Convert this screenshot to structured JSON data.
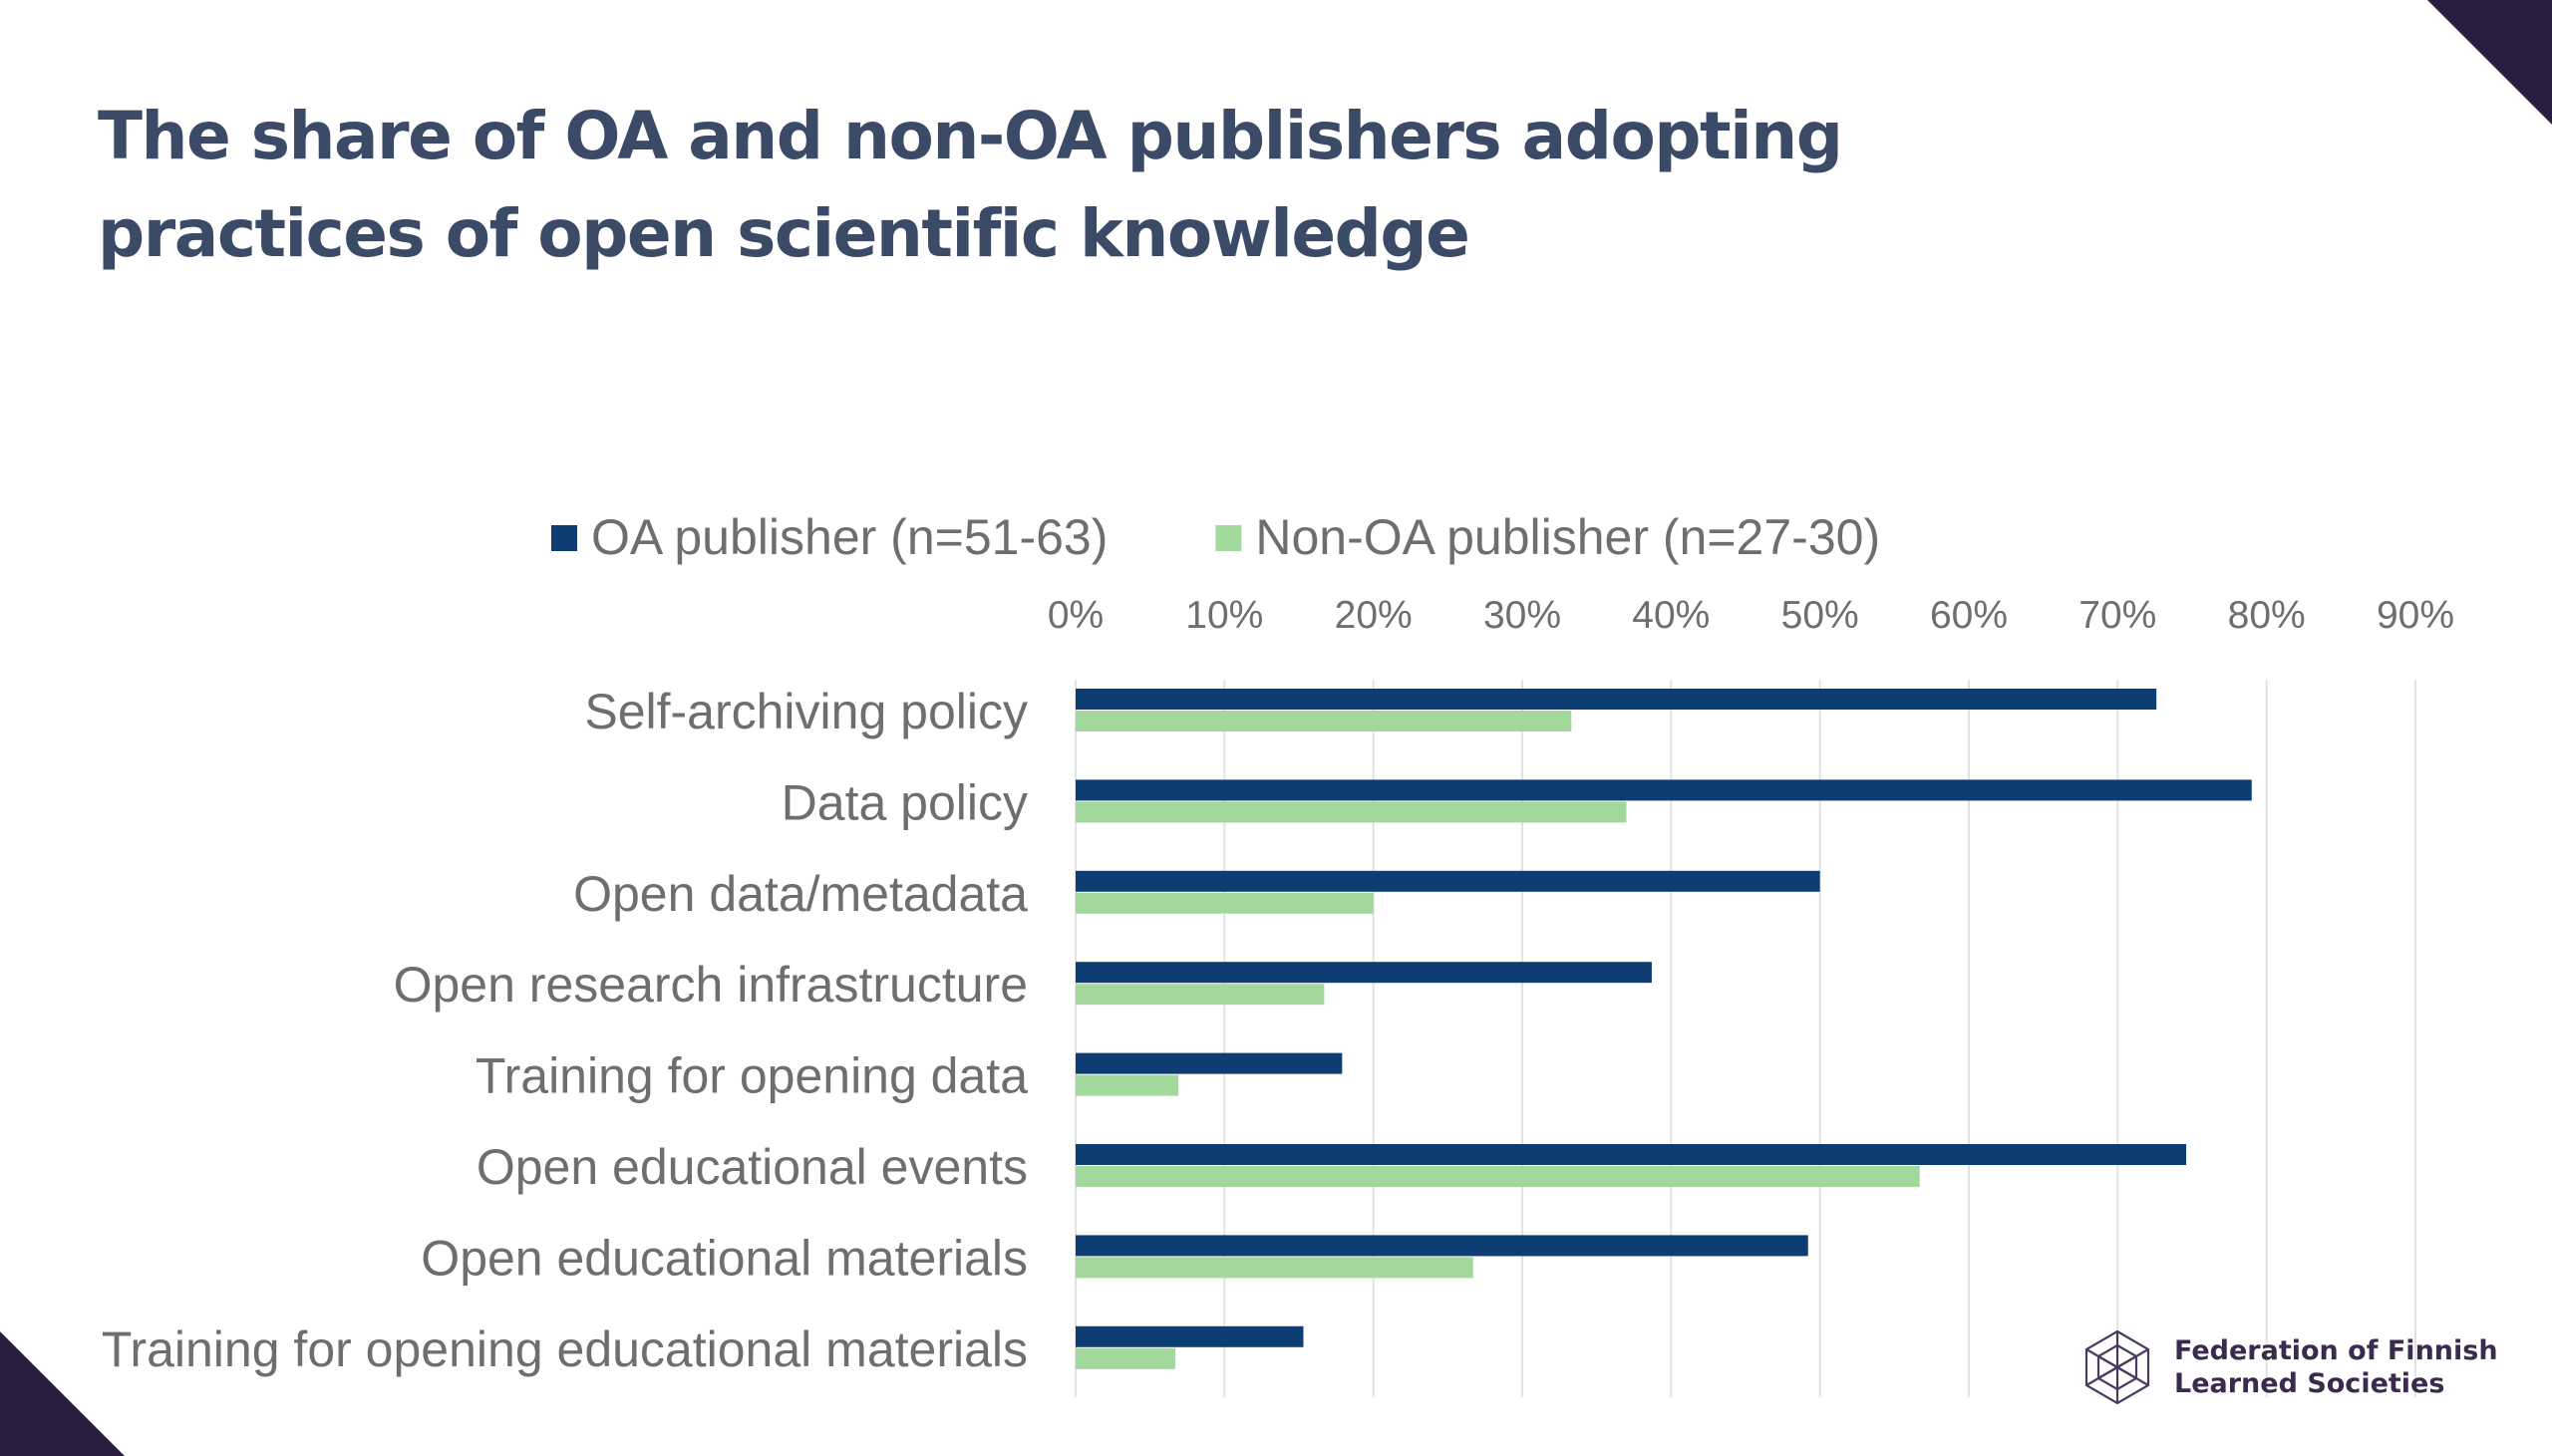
{
  "slide": {
    "title_line1": "The share of OA and non-OA publishers adopting",
    "title_line2": "practices of open scientific knowledge"
  },
  "logo": {
    "line1": "Federation of Finnish",
    "line2": "Learned Societies",
    "icon": "hexagon-lattice-icon"
  },
  "colors": {
    "oa": "#0d3d73",
    "non_oa": "#a3d89c",
    "corner": "#2a1c3e",
    "title": "#3b4a66",
    "label": "#6e6e6e",
    "grid": "#e2e2e2"
  },
  "chart_data": {
    "type": "bar",
    "orientation": "horizontal",
    "categories": [
      "Self-archiving policy",
      "Data policy",
      "Open data/metadata",
      "Open research infrastructure",
      "Training for opening data",
      "Open educational events",
      "Open educational materials",
      "Training for opening educational materials"
    ],
    "series": [
      {
        "name": "OA publisher (n=51-63)",
        "values": [
          72.6,
          79.0,
          50.0,
          38.7,
          17.9,
          74.6,
          49.2,
          15.3
        ]
      },
      {
        "name": "Non-OA publisher (n=27-30)",
        "values": [
          33.3,
          37.0,
          20.0,
          16.7,
          6.9,
          56.7,
          26.7,
          6.7
        ]
      }
    ],
    "xlim": [
      0,
      90
    ],
    "xticks": [
      "0%",
      "10%",
      "20%",
      "30%",
      "40%",
      "50%",
      "60%",
      "70%",
      "80%",
      "90%"
    ],
    "x_axis_position": "top",
    "legend_position": "top",
    "grid": "vertical"
  }
}
